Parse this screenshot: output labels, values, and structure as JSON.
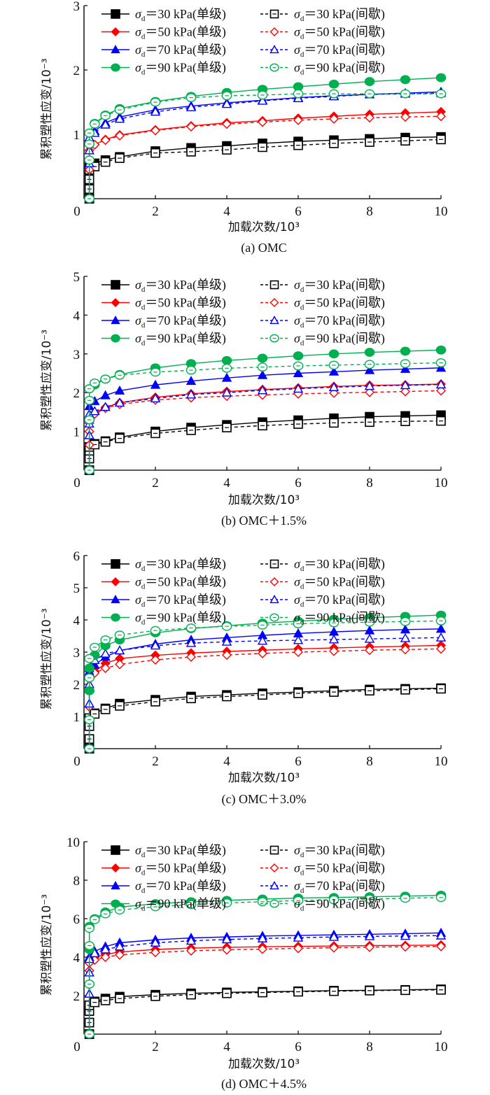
{
  "chart_data": [
    {
      "type": "line",
      "panel": "a",
      "caption": "(a)    OMC",
      "xlabel": "加载次数/10³",
      "ylabel": "累积塑性应变/10⁻³",
      "xlim": [
        0,
        10
      ],
      "ylim": [
        0,
        3
      ],
      "xticks": [
        "0",
        "2",
        "4",
        "6",
        "8",
        "10"
      ],
      "yticks": [
        "1",
        "2",
        "3"
      ],
      "ytick_values": [
        1,
        2,
        3
      ],
      "legend_position": "top-right",
      "x": [
        0.15,
        0.15,
        0.15,
        0.15,
        0.3,
        0.6,
        1,
        2,
        3,
        4,
        5,
        6,
        7,
        8,
        9,
        10
      ],
      "series": [
        {
          "name": "σd=30 kPa(单级)",
          "color": "#000000",
          "marker": "square",
          "filled": true,
          "dashed": false,
          "values": [
            0,
            0.2,
            0.35,
            0.5,
            0.55,
            0.6,
            0.65,
            0.74,
            0.79,
            0.82,
            0.86,
            0.89,
            0.91,
            0.93,
            0.95,
            0.96
          ]
        },
        {
          "name": "σd=30 kPa(间歇)",
          "color": "#000000",
          "marker": "square",
          "filled": false,
          "dashed": true,
          "values": [
            0,
            0.15,
            0.3,
            0.45,
            0.5,
            0.57,
            0.63,
            0.71,
            0.73,
            0.76,
            0.8,
            0.83,
            0.86,
            0.88,
            0.9,
            0.92
          ]
        },
        {
          "name": "σd=50 kPa(单级)",
          "color": "#ff0000",
          "marker": "diamond",
          "filled": true,
          "dashed": false,
          "values": [
            0,
            0.45,
            0.6,
            0.75,
            0.84,
            0.92,
            0.99,
            1.07,
            1.13,
            1.18,
            1.21,
            1.25,
            1.28,
            1.31,
            1.33,
            1.35
          ]
        },
        {
          "name": "σd=50 kPa(间歇)",
          "color": "#ff0000",
          "marker": "diamond",
          "filled": false,
          "dashed": true,
          "values": [
            0,
            0.45,
            0.6,
            0.75,
            0.84,
            0.91,
            0.98,
            1.06,
            1.12,
            1.16,
            1.19,
            1.22,
            1.24,
            1.26,
            1.27,
            1.28
          ]
        },
        {
          "name": "σd=70 kPa(单级)",
          "color": "#0000ff",
          "marker": "triangle",
          "filled": true,
          "dashed": false,
          "values": [
            0,
            0.55,
            0.75,
            0.95,
            1.05,
            1.18,
            1.27,
            1.38,
            1.44,
            1.49,
            1.53,
            1.57,
            1.6,
            1.62,
            1.64,
            1.66
          ]
        },
        {
          "name": "σd=70 kPa(间歇)",
          "color": "#0000ff",
          "marker": "triangle",
          "filled": false,
          "dashed": true,
          "values": [
            0,
            0.55,
            0.75,
            0.95,
            1.02,
            1.15,
            1.24,
            1.35,
            1.42,
            1.47,
            1.52,
            1.56,
            1.59,
            1.62,
            1.63,
            1.64
          ]
        },
        {
          "name": "σd=90 kPa(单级)",
          "color": "#00b050",
          "marker": "circle",
          "filled": true,
          "dashed": false,
          "values": [
            0,
            0.6,
            0.85,
            1.02,
            1.17,
            1.3,
            1.4,
            1.51,
            1.59,
            1.65,
            1.7,
            1.74,
            1.78,
            1.82,
            1.85,
            1.88
          ]
        },
        {
          "name": "σd=90 kPa(间歇)",
          "color": "#00b050",
          "marker": "circle",
          "filled": false,
          "dashed": true,
          "values": [
            0,
            0.6,
            0.85,
            1.02,
            1.16,
            1.29,
            1.38,
            1.5,
            1.57,
            1.6,
            1.61,
            1.63,
            1.63,
            1.63,
            1.63,
            1.63
          ]
        }
      ]
    },
    {
      "type": "line",
      "panel": "b",
      "caption": "(b)    OMC＋1.5%",
      "xlabel": "加载次数/10³",
      "ylabel": "累积塑性应变/10⁻³",
      "xlim": [
        0,
        10
      ],
      "ylim": [
        0,
        5
      ],
      "xticks": [
        "0",
        "2",
        "4",
        "6",
        "8",
        "10"
      ],
      "yticks": [
        "1",
        "2",
        "3",
        "4",
        "5"
      ],
      "ytick_values": [
        1,
        2,
        3,
        4,
        5
      ],
      "legend_position": "top-right",
      "x": [
        0.15,
        0.15,
        0.15,
        0.15,
        0.3,
        0.6,
        1,
        2,
        3,
        4,
        5,
        6,
        7,
        8,
        9,
        10
      ],
      "series": [
        {
          "name": "σd=30 kPa(单级)",
          "color": "#000000",
          "marker": "square",
          "filled": true,
          "dashed": false,
          "values": [
            0,
            0.3,
            0.5,
            0.6,
            0.68,
            0.75,
            0.85,
            1.0,
            1.1,
            1.17,
            1.24,
            1.29,
            1.34,
            1.38,
            1.4,
            1.42
          ]
        },
        {
          "name": "σd=30 kPa(间歇)",
          "color": "#000000",
          "marker": "square",
          "filled": false,
          "dashed": true,
          "values": [
            0,
            0.3,
            0.5,
            0.6,
            0.66,
            0.73,
            0.82,
            0.95,
            1.03,
            1.1,
            1.15,
            1.19,
            1.22,
            1.24,
            1.26,
            1.27
          ]
        },
        {
          "name": "σd=50 kPa(单级)",
          "color": "#ff0000",
          "marker": "diamond",
          "filled": true,
          "dashed": false,
          "values": [
            0,
            0.65,
            1.0,
            1.35,
            1.48,
            1.62,
            1.74,
            1.88,
            1.97,
            2.03,
            2.08,
            2.12,
            2.16,
            2.19,
            2.2,
            2.22
          ]
        },
        {
          "name": "σd=50 kPa(间歇)",
          "color": "#ff0000",
          "marker": "diamond",
          "filled": false,
          "dashed": true,
          "values": [
            0,
            0.65,
            1.0,
            1.3,
            1.45,
            1.6,
            1.7,
            1.81,
            1.87,
            1.91,
            1.94,
            1.97,
            1.99,
            2.01,
            2.03,
            2.05
          ]
        },
        {
          "name": "σd=70 kPa(单级)",
          "color": "#0000ff",
          "marker": "triangle",
          "filled": true,
          "dashed": false,
          "values": [
            0,
            0.9,
            1.3,
            1.65,
            1.78,
            1.93,
            2.05,
            2.2,
            2.3,
            2.38,
            2.45,
            2.5,
            2.54,
            2.58,
            2.61,
            2.64
          ]
        },
        {
          "name": "σd=70 kPa(间歇)",
          "color": "#0000ff",
          "marker": "triangle",
          "filled": false,
          "dashed": true,
          "values": [
            0,
            0.9,
            1.2,
            1.45,
            1.52,
            1.63,
            1.74,
            1.85,
            1.95,
            2.0,
            2.06,
            2.1,
            2.14,
            2.17,
            2.19,
            2.21
          ]
        },
        {
          "name": "σd=90 kPa(单级)",
          "color": "#00b050",
          "marker": "circle",
          "filled": true,
          "dashed": false,
          "values": [
            0,
            1.3,
            1.8,
            2.1,
            2.2,
            2.35,
            2.47,
            2.64,
            2.75,
            2.83,
            2.89,
            2.95,
            3.0,
            3.04,
            3.07,
            3.1
          ]
        },
        {
          "name": "σd=90 kPa(间歇)",
          "color": "#00b050",
          "marker": "circle",
          "filled": false,
          "dashed": true,
          "values": [
            0,
            1.3,
            1.8,
            2.1,
            2.25,
            2.35,
            2.45,
            2.53,
            2.58,
            2.63,
            2.66,
            2.69,
            2.71,
            2.73,
            2.75,
            2.77
          ]
        }
      ]
    },
    {
      "type": "line",
      "panel": "c",
      "caption": "(c)    OMC＋3.0%",
      "xlabel": "加载次数/10³",
      "ylabel": "累积塑性应变/10⁻³",
      "xlim": [
        0,
        10
      ],
      "ylim": [
        0,
        6
      ],
      "xticks": [
        "0",
        "2",
        "4",
        "6",
        "8",
        "10"
      ],
      "yticks": [
        "1",
        "2",
        "3",
        "4",
        "5",
        "6"
      ],
      "ytick_values": [
        1,
        2,
        3,
        4,
        5,
        6
      ],
      "legend_position": "top-right",
      "x": [
        0.15,
        0.15,
        0.15,
        0.15,
        0.3,
        0.6,
        1,
        2,
        3,
        4,
        5,
        6,
        7,
        8,
        9,
        10
      ],
      "series": [
        {
          "name": "σd=30 kPa(单级)",
          "color": "#000000",
          "marker": "square",
          "filled": true,
          "dashed": false,
          "values": [
            0,
            0.3,
            0.7,
            0.95,
            1.1,
            1.25,
            1.4,
            1.52,
            1.62,
            1.67,
            1.72,
            1.76,
            1.8,
            1.84,
            1.86,
            1.88
          ]
        },
        {
          "name": "σd=30 kPa(间歇)",
          "color": "#000000",
          "marker": "square",
          "filled": false,
          "dashed": true,
          "values": [
            0,
            0.3,
            0.7,
            0.95,
            1.08,
            1.22,
            1.33,
            1.46,
            1.56,
            1.62,
            1.67,
            1.72,
            1.76,
            1.8,
            1.83,
            1.86
          ]
        },
        {
          "name": "σd=50 kPa(单级)",
          "color": "#ff0000",
          "marker": "diamond",
          "filled": true,
          "dashed": false,
          "values": [
            0,
            1.3,
            1.8,
            2.2,
            2.4,
            2.65,
            2.8,
            2.9,
            2.97,
            3.02,
            3.06,
            3.1,
            3.13,
            3.16,
            3.18,
            3.21
          ]
        },
        {
          "name": "σd=50 kPa(间歇)",
          "color": "#ff0000",
          "marker": "diamond",
          "filled": false,
          "dashed": true,
          "values": [
            0,
            1.3,
            1.8,
            2.2,
            2.35,
            2.5,
            2.62,
            2.76,
            2.85,
            2.91,
            2.96,
            3.0,
            3.03,
            3.06,
            3.08,
            3.1
          ]
        },
        {
          "name": "σd=70 kPa(单级)",
          "color": "#0000ff",
          "marker": "triangle",
          "filled": true,
          "dashed": false,
          "values": [
            0,
            1.4,
            2.0,
            2.4,
            2.6,
            2.85,
            3.05,
            3.25,
            3.38,
            3.45,
            3.52,
            3.58,
            3.63,
            3.67,
            3.7,
            3.72
          ]
        },
        {
          "name": "σd=70 kPa(间歇)",
          "color": "#0000ff",
          "marker": "triangle",
          "filled": false,
          "dashed": true,
          "values": [
            0,
            1.4,
            2.0,
            2.5,
            2.75,
            2.95,
            3.05,
            3.2,
            3.28,
            3.32,
            3.35,
            3.37,
            3.39,
            3.41,
            3.43,
            3.45
          ]
        },
        {
          "name": "σd=90 kPa(单级)",
          "color": "#00b050",
          "marker": "circle",
          "filled": true,
          "dashed": false,
          "values": [
            0,
            0.9,
            1.8,
            2.5,
            2.9,
            3.2,
            3.38,
            3.6,
            3.73,
            3.82,
            3.9,
            3.96,
            4.02,
            4.07,
            4.11,
            4.15
          ]
        },
        {
          "name": "σd=90 kPa(间歇)",
          "color": "#00b050",
          "marker": "circle",
          "filled": false,
          "dashed": true,
          "values": [
            0,
            0.9,
            2.2,
            2.8,
            3.15,
            3.38,
            3.53,
            3.67,
            3.75,
            3.8,
            3.84,
            3.88,
            3.91,
            3.93,
            3.95,
            3.97
          ]
        }
      ]
    },
    {
      "type": "line",
      "panel": "d",
      "caption": "(d)    OMC＋4.5%",
      "xlabel": "加载次数/10³",
      "ylabel": "累积塑性应变/10⁻³",
      "xlim": [
        0,
        10
      ],
      "ylim": [
        0,
        10
      ],
      "xticks": [
        "0",
        "2",
        "4",
        "6",
        "8",
        "10"
      ],
      "yticks": [
        "2",
        "4",
        "6",
        "8",
        "10"
      ],
      "ytick_values": [
        2,
        4,
        6,
        8,
        10
      ],
      "legend_position": "top-right",
      "x": [
        0.15,
        0.15,
        0.15,
        0.15,
        0.3,
        0.6,
        1,
        2,
        3,
        4,
        5,
        6,
        7,
        8,
        9,
        10
      ],
      "series": [
        {
          "name": "σd=30 kPa(单级)",
          "color": "#000000",
          "marker": "square",
          "filled": true,
          "dashed": false,
          "values": [
            0,
            0.6,
            1.2,
            1.5,
            1.7,
            1.85,
            1.95,
            2.05,
            2.12,
            2.17,
            2.2,
            2.23,
            2.26,
            2.28,
            2.3,
            2.33
          ]
        },
        {
          "name": "σd=30 kPa(间歇)",
          "color": "#000000",
          "marker": "square",
          "filled": false,
          "dashed": true,
          "values": [
            0,
            0.6,
            1.2,
            1.5,
            1.65,
            1.75,
            1.85,
            1.97,
            2.05,
            2.12,
            2.16,
            2.2,
            2.23,
            2.26,
            2.28,
            2.3
          ]
        },
        {
          "name": "σd=50 kPa(单级)",
          "color": "#ff0000",
          "marker": "diamond",
          "filled": true,
          "dashed": false,
          "values": [
            0,
            2.6,
            3.3,
            3.8,
            4.0,
            4.15,
            4.27,
            4.4,
            4.47,
            4.51,
            4.54,
            4.56,
            4.58,
            4.6,
            4.61,
            4.63
          ]
        },
        {
          "name": "σd=50 kPa(间歇)",
          "color": "#ff0000",
          "marker": "diamond",
          "filled": false,
          "dashed": true,
          "values": [
            0,
            2.6,
            3.3,
            3.7,
            3.85,
            4.0,
            4.12,
            4.25,
            4.33,
            4.38,
            4.42,
            4.46,
            4.49,
            4.52,
            4.54,
            4.56
          ]
        },
        {
          "name": "σd=70 kPa(单级)",
          "color": "#0000ff",
          "marker": "triangle",
          "filled": true,
          "dashed": false,
          "values": [
            0,
            2.1,
            3.2,
            4.0,
            4.3,
            4.55,
            4.75,
            4.9,
            5.0,
            5.05,
            5.1,
            5.13,
            5.16,
            5.19,
            5.22,
            5.26
          ]
        },
        {
          "name": "σd=70 kPa(间歇)",
          "color": "#0000ff",
          "marker": "triangle",
          "filled": false,
          "dashed": true,
          "values": [
            0,
            2.1,
            3.2,
            3.9,
            4.2,
            4.4,
            4.55,
            4.75,
            4.85,
            4.92,
            4.97,
            5.01,
            5.05,
            5.08,
            5.1,
            5.12
          ]
        },
        {
          "name": "σd=90 kPa(单级)",
          "color": "#00b050",
          "marker": "circle",
          "filled": true,
          "dashed": false,
          "values": [
            0,
            2.6,
            4.4,
            5.6,
            6.0,
            6.35,
            6.6,
            6.78,
            6.88,
            6.95,
            7.02,
            7.07,
            7.1,
            7.14,
            7.17,
            7.22
          ]
        },
        {
          "name": "σd=90 kPa(间歇)",
          "color": "#00b050",
          "marker": "circle",
          "filled": false,
          "dashed": true,
          "values": [
            0,
            2.6,
            4.6,
            5.5,
            5.95,
            6.25,
            6.45,
            6.62,
            6.73,
            6.82,
            6.88,
            6.94,
            6.98,
            7.02,
            7.06,
            7.1
          ]
        }
      ]
    }
  ]
}
